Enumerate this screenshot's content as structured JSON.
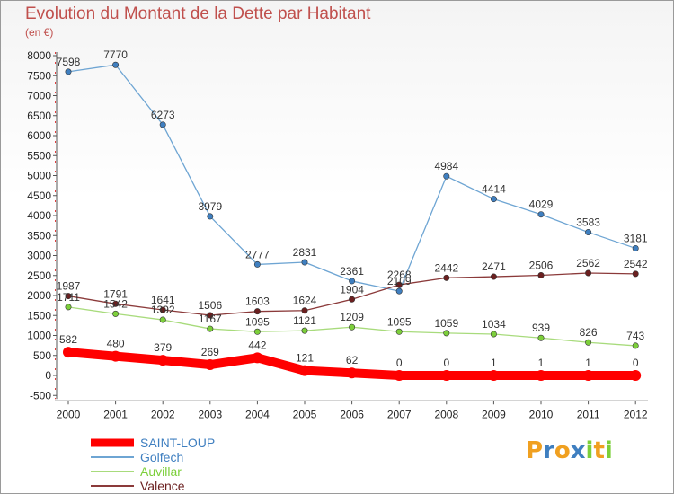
{
  "chart_data": {
    "type": "line",
    "title": "Evolution du Montant de la Dette par Habitant",
    "unit": "(en €)",
    "x": [
      "2000",
      "2001",
      "2002",
      "2003",
      "2004",
      "2005",
      "2006",
      "2007",
      "2008",
      "2009",
      "2010",
      "2011",
      "2012"
    ],
    "ylim": [
      -500,
      8000
    ],
    "yticks": [
      -500,
      0,
      500,
      1000,
      1500,
      2000,
      2500,
      3000,
      3500,
      4000,
      4500,
      5000,
      5500,
      6000,
      6500,
      7000,
      7500,
      8000
    ],
    "grid": false,
    "legend_position": "bottom-left",
    "series": [
      {
        "name": "SAINT-LOUP",
        "color": "#ff0000",
        "point_color": "#ff0000",
        "emphasis": true,
        "values": [
          582,
          480,
          379,
          269,
          442,
          121,
          62,
          0,
          0,
          1,
          1,
          1,
          0
        ]
      },
      {
        "name": "Golfech",
        "color": "#6ea5d3",
        "point_color": "#3f7fc0",
        "emphasis": false,
        "values": [
          7598,
          7770,
          6273,
          3979,
          2777,
          2831,
          2361,
          2109,
          4984,
          4414,
          4029,
          3583,
          3181
        ]
      },
      {
        "name": "Auvillar",
        "color": "#a8db7c",
        "point_color": "#7ccf3a",
        "emphasis": false,
        "values": [
          1711,
          1542,
          1392,
          1167,
          1095,
          1121,
          1209,
          1095,
          1059,
          1034,
          939,
          826,
          743
        ]
      },
      {
        "name": "Valence",
        "color": "#8b3a3a",
        "point_color": "#6b1f1f",
        "emphasis": false,
        "values": [
          1987,
          1791,
          1641,
          1506,
          1603,
          1624,
          1904,
          2268,
          2442,
          2471,
          2506,
          2562,
          2542
        ]
      }
    ]
  },
  "brand": {
    "letters": [
      "P",
      "r",
      "o",
      "x",
      "i",
      "t",
      "i"
    ],
    "colors": [
      "#f0a020",
      "#3f7fc0",
      "#f0a020",
      "#3f7fc0",
      "#7ccf3a",
      "#f0a020",
      "#7ccf3a"
    ]
  }
}
